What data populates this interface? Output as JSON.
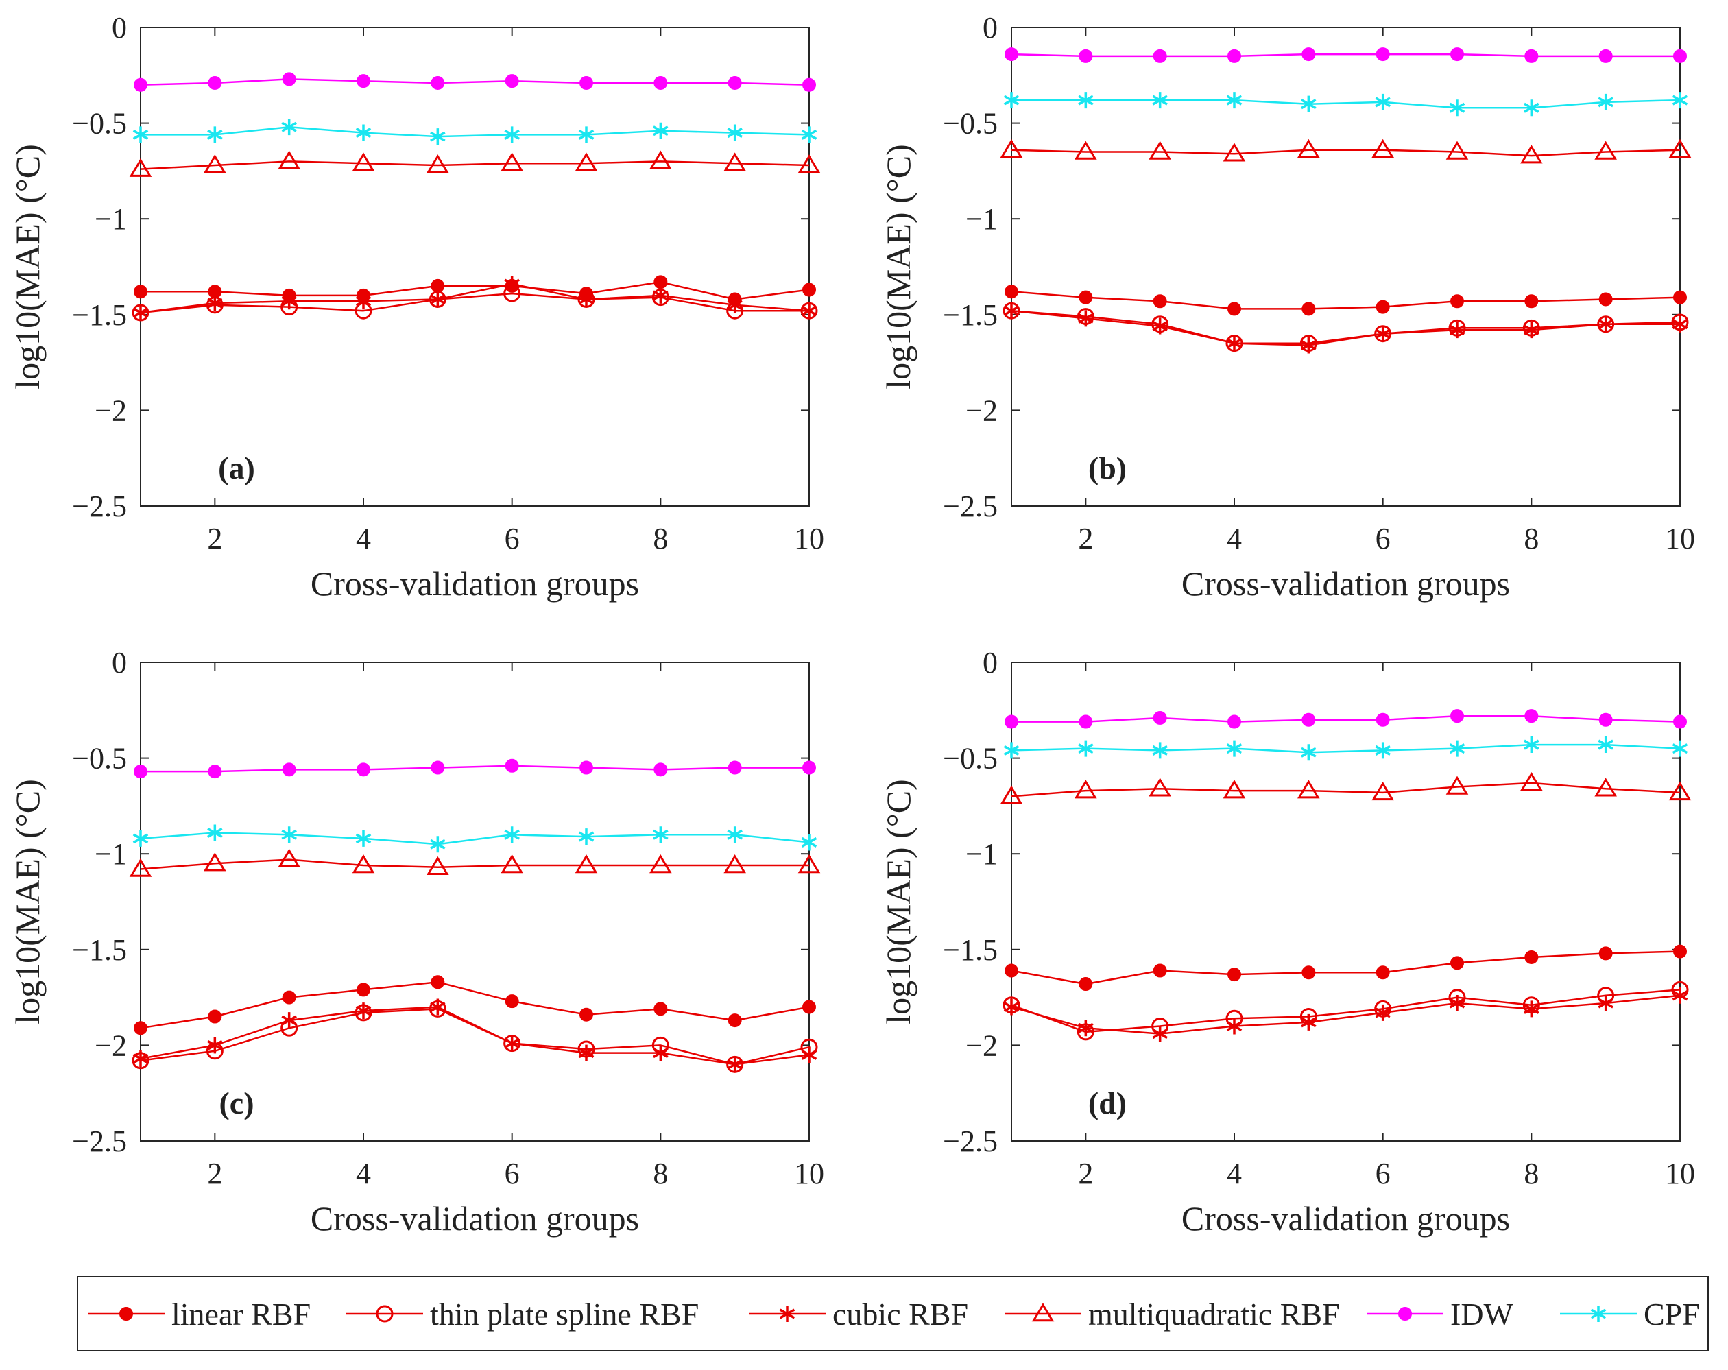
{
  "chart_data": {
    "type": "line",
    "series_styles": {
      "linear RBF": {
        "color": "#e80000",
        "marker": "filled-circle"
      },
      "thin plate spline RBF": {
        "color": "#e80000",
        "marker": "open-circle"
      },
      "cubic RBF": {
        "color": "#e80000",
        "marker": "asterisk"
      },
      "multiquadratic RBF": {
        "color": "#e80000",
        "marker": "open-triangle"
      },
      "IDW": {
        "color": "#ff00ff",
        "marker": "filled-circle"
      },
      "CPF": {
        "color": "#19e6f0",
        "marker": "asterisk"
      }
    },
    "legend": {
      "position": "bottom",
      "entries": [
        "linear RBF",
        "thin plate spline RBF",
        "cubic RBF",
        "multiquadratic RBF",
        "IDW",
        "CPF"
      ]
    },
    "panels": [
      {
        "label": "(a)",
        "xlabel": "Cross-validation groups",
        "ylabel": "log10(MAE) (°C)",
        "xlim": [
          1,
          10
        ],
        "ylim": [
          -2.5,
          0
        ],
        "xticks": [
          2,
          4,
          6,
          8,
          10
        ],
        "yticks": [
          0,
          -0.5,
          -1,
          -1.5,
          -2,
          -2.5
        ],
        "xtick_labels": [
          "2",
          "4",
          "6",
          "8",
          "10"
        ],
        "ytick_labels": [
          "0",
          "−0.5",
          "−1",
          "−1.5",
          "−2",
          "−2.5"
        ],
        "x": [
          1,
          2,
          3,
          4,
          5,
          6,
          7,
          8,
          9,
          10
        ],
        "series": [
          {
            "name": "linear RBF",
            "values": [
              -1.38,
              -1.38,
              -1.4,
              -1.4,
              -1.35,
              -1.35,
              -1.39,
              -1.33,
              -1.42,
              -1.37
            ]
          },
          {
            "name": "thin plate spline RBF",
            "values": [
              -1.49,
              -1.45,
              -1.46,
              -1.48,
              -1.42,
              -1.39,
              -1.42,
              -1.41,
              -1.48,
              -1.48
            ]
          },
          {
            "name": "cubic RBF",
            "values": [
              -1.49,
              -1.44,
              -1.43,
              -1.43,
              -1.42,
              -1.34,
              -1.42,
              -1.4,
              -1.45,
              -1.48
            ]
          },
          {
            "name": "multiquadratic RBF",
            "values": [
              -0.74,
              -0.72,
              -0.7,
              -0.71,
              -0.72,
              -0.71,
              -0.71,
              -0.7,
              -0.71,
              -0.72
            ]
          },
          {
            "name": "IDW",
            "values": [
              -0.3,
              -0.29,
              -0.27,
              -0.28,
              -0.29,
              -0.28,
              -0.29,
              -0.29,
              -0.29,
              -0.3
            ]
          },
          {
            "name": "CPF",
            "values": [
              -0.56,
              -0.56,
              -0.52,
              -0.55,
              -0.57,
              -0.56,
              -0.56,
              -0.54,
              -0.55,
              -0.56
            ]
          }
        ]
      },
      {
        "label": "(b)",
        "xlabel": "Cross-validation groups",
        "ylabel": "log10(MAE) (°C)",
        "xlim": [
          1,
          10
        ],
        "ylim": [
          -2.5,
          0
        ],
        "xticks": [
          2,
          4,
          6,
          8,
          10
        ],
        "yticks": [
          0,
          -0.5,
          -1,
          -1.5,
          -2,
          -2.5
        ],
        "xtick_labels": [
          "2",
          "4",
          "6",
          "8",
          "10"
        ],
        "ytick_labels": [
          "0",
          "−0.5",
          "−1",
          "−1.5",
          "−2",
          "−2.5"
        ],
        "x": [
          1,
          2,
          3,
          4,
          5,
          6,
          7,
          8,
          9,
          10
        ],
        "series": [
          {
            "name": "linear RBF",
            "values": [
              -1.38,
              -1.41,
              -1.43,
              -1.47,
              -1.47,
              -1.46,
              -1.43,
              -1.43,
              -1.42,
              -1.41
            ]
          },
          {
            "name": "thin plate spline RBF",
            "values": [
              -1.48,
              -1.51,
              -1.55,
              -1.65,
              -1.65,
              -1.6,
              -1.57,
              -1.57,
              -1.55,
              -1.54
            ]
          },
          {
            "name": "cubic RBF",
            "values": [
              -1.48,
              -1.52,
              -1.56,
              -1.65,
              -1.66,
              -1.6,
              -1.58,
              -1.58,
              -1.55,
              -1.55
            ]
          },
          {
            "name": "multiquadratic RBF",
            "values": [
              -0.64,
              -0.65,
              -0.65,
              -0.66,
              -0.64,
              -0.64,
              -0.65,
              -0.67,
              -0.65,
              -0.64
            ]
          },
          {
            "name": "IDW",
            "values": [
              -0.14,
              -0.15,
              -0.15,
              -0.15,
              -0.14,
              -0.14,
              -0.14,
              -0.15,
              -0.15,
              -0.15
            ]
          },
          {
            "name": "CPF",
            "values": [
              -0.38,
              -0.38,
              -0.38,
              -0.38,
              -0.4,
              -0.39,
              -0.42,
              -0.42,
              -0.39,
              -0.38
            ]
          }
        ]
      },
      {
        "label": "(c)",
        "xlabel": "Cross-validation groups",
        "ylabel": "log10(MAE) (°C)",
        "xlim": [
          1,
          10
        ],
        "ylim": [
          -2.5,
          0
        ],
        "xticks": [
          2,
          4,
          6,
          8,
          10
        ],
        "yticks": [
          0,
          -0.5,
          -1,
          -1.5,
          -2,
          -2.5
        ],
        "xtick_labels": [
          "2",
          "4",
          "6",
          "8",
          "10"
        ],
        "ytick_labels": [
          "0",
          "−0.5",
          "−1",
          "−1.5",
          "−2",
          "−2.5"
        ],
        "x": [
          1,
          2,
          3,
          4,
          5,
          6,
          7,
          8,
          9,
          10
        ],
        "series": [
          {
            "name": "linear RBF",
            "values": [
              -1.91,
              -1.85,
              -1.75,
              -1.71,
              -1.67,
              -1.77,
              -1.84,
              -1.81,
              -1.87,
              -1.8
            ]
          },
          {
            "name": "thin plate spline RBF",
            "values": [
              -2.08,
              -2.03,
              -1.91,
              -1.83,
              -1.81,
              -1.99,
              -2.02,
              -2.0,
              -2.1,
              -2.01
            ]
          },
          {
            "name": "cubic RBF",
            "values": [
              -2.07,
              -2.0,
              -1.87,
              -1.82,
              -1.8,
              -1.99,
              -2.04,
              -2.04,
              -2.1,
              -2.05
            ]
          },
          {
            "name": "multiquadratic RBF",
            "values": [
              -1.08,
              -1.05,
              -1.03,
              -1.06,
              -1.07,
              -1.06,
              -1.06,
              -1.06,
              -1.06,
              -1.06
            ]
          },
          {
            "name": "IDW",
            "values": [
              -0.57,
              -0.57,
              -0.56,
              -0.56,
              -0.55,
              -0.54,
              -0.55,
              -0.56,
              -0.55,
              -0.55
            ]
          },
          {
            "name": "CPF",
            "values": [
              -0.92,
              -0.89,
              -0.9,
              -0.92,
              -0.95,
              -0.9,
              -0.91,
              -0.9,
              -0.9,
              -0.94
            ]
          }
        ]
      },
      {
        "label": "(d)",
        "xlabel": "Cross-validation groups",
        "ylabel": "log10(MAE) (°C)",
        "xlim": [
          1,
          10
        ],
        "ylim": [
          -2.5,
          0
        ],
        "xticks": [
          2,
          4,
          6,
          8,
          10
        ],
        "yticks": [
          0,
          -0.5,
          -1,
          -1.5,
          -2,
          -2.5
        ],
        "xtick_labels": [
          "2",
          "4",
          "6",
          "8",
          "10"
        ],
        "ytick_labels": [
          "0",
          "−0.5",
          "−1",
          "−1.5",
          "−2",
          "−2.5"
        ],
        "x": [
          1,
          2,
          3,
          4,
          5,
          6,
          7,
          8,
          9,
          10
        ],
        "series": [
          {
            "name": "linear RBF",
            "values": [
              -1.61,
              -1.68,
              -1.61,
              -1.63,
              -1.62,
              -1.62,
              -1.57,
              -1.54,
              -1.52,
              -1.51
            ]
          },
          {
            "name": "thin plate spline RBF",
            "values": [
              -1.79,
              -1.93,
              -1.9,
              -1.86,
              -1.85,
              -1.81,
              -1.75,
              -1.79,
              -1.74,
              -1.71
            ]
          },
          {
            "name": "cubic RBF",
            "values": [
              -1.8,
              -1.91,
              -1.94,
              -1.9,
              -1.88,
              -1.83,
              -1.78,
              -1.81,
              -1.78,
              -1.74
            ]
          },
          {
            "name": "multiquadratic RBF",
            "values": [
              -0.7,
              -0.67,
              -0.66,
              -0.67,
              -0.67,
              -0.68,
              -0.65,
              -0.63,
              -0.66,
              -0.68
            ]
          },
          {
            "name": "IDW",
            "values": [
              -0.31,
              -0.31,
              -0.29,
              -0.31,
              -0.3,
              -0.3,
              -0.28,
              -0.28,
              -0.3,
              -0.31
            ]
          },
          {
            "name": "CPF",
            "values": [
              -0.46,
              -0.45,
              -0.46,
              -0.45,
              -0.47,
              -0.46,
              -0.45,
              -0.43,
              -0.43,
              -0.45
            ]
          }
        ]
      }
    ]
  }
}
